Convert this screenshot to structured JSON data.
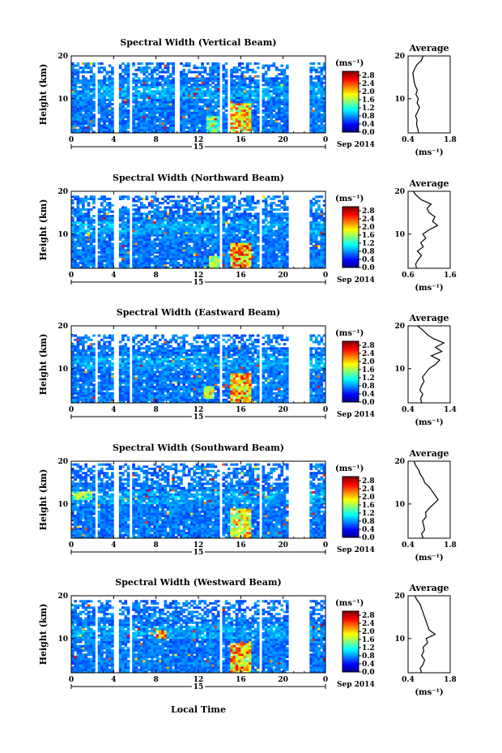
{
  "figure": {
    "x_axis_label": "Local Time",
    "month_year": "Sep 2014",
    "date_marker": "15"
  },
  "chart_data": [
    {
      "type": "heatmap",
      "title": "Spectral Width (Vertical Beam)",
      "xlabel": "",
      "ylabel": "Height (km)",
      "x_ticks": [
        "0",
        "4",
        "8",
        "12",
        "16",
        "20",
        "0"
      ],
      "y_ticks": [
        "20",
        "10"
      ],
      "xlim": [
        0,
        24
      ],
      "ylim": [
        2,
        20
      ],
      "colorbar": {
        "unit": "(ms⁻¹)",
        "ticks": [
          "2.8",
          "2.4",
          "2.0",
          "1.6",
          "1.2",
          "0.8",
          "0.4",
          "0.0"
        ],
        "range": [
          0.0,
          3.0
        ]
      },
      "gaps": [
        [
          2.3,
          2.6
        ],
        [
          4.0,
          4.6
        ],
        [
          5.5,
          5.8
        ],
        [
          9.8,
          10.2
        ],
        [
          14.0,
          14.3
        ],
        [
          14.8,
          15.1
        ],
        [
          17.8,
          18.1
        ],
        [
          20.5,
          22.6
        ]
      ],
      "high_zones": [
        {
          "x": [
            15.0,
            17.0
          ],
          "y": [
            2,
            9
          ],
          "v": 2.4
        },
        {
          "x": [
            12.8,
            14.0
          ],
          "y": [
            2,
            6
          ],
          "v": 1.8
        }
      ],
      "top_km": 18.5,
      "average_profile": {
        "title": "Average",
        "xlabel": "(ms⁻¹)",
        "x_ticks": [
          "0.4",
          "1.8"
        ],
        "xlim": [
          0.4,
          1.8
        ],
        "y_ticks": [
          "20",
          "10"
        ],
        "height_km": [
          2,
          3,
          4,
          5,
          6,
          7,
          8,
          9,
          10,
          11,
          12,
          13,
          14,
          15,
          16,
          17,
          18,
          19,
          20
        ],
        "values": [
          0.75,
          0.72,
          0.68,
          0.7,
          0.65,
          0.72,
          0.78,
          0.7,
          0.74,
          0.66,
          0.71,
          0.64,
          0.6,
          0.58,
          0.56,
          0.62,
          0.7,
          0.85,
          0.9
        ]
      }
    },
    {
      "type": "heatmap",
      "title": "Spectral Width (Northward Beam)",
      "xlabel": "",
      "ylabel": "Height (km)",
      "x_ticks": [
        "0",
        "4",
        "8",
        "12",
        "16",
        "20",
        "0"
      ],
      "y_ticks": [
        "20",
        "10"
      ],
      "xlim": [
        0,
        24
      ],
      "ylim": [
        2,
        20
      ],
      "colorbar": {
        "unit": "(ms⁻¹)",
        "ticks": [
          "2.8",
          "2.4",
          "2.0",
          "1.6",
          "1.2",
          "0.8",
          "0.4",
          "0.0"
        ],
        "range": [
          0.0,
          3.0
        ]
      },
      "gaps": [
        [
          2.3,
          2.6
        ],
        [
          4.0,
          4.6
        ],
        [
          5.5,
          5.8
        ],
        [
          14.0,
          14.3
        ],
        [
          17.8,
          18.1
        ],
        [
          20.5,
          22.6
        ]
      ],
      "high_zones": [
        {
          "x": [
            15.0,
            17.0
          ],
          "y": [
            2,
            8
          ],
          "v": 2.6
        },
        {
          "x": [
            13.0,
            14.0
          ],
          "y": [
            2,
            5
          ],
          "v": 2.0
        }
      ],
      "top_km": 19,
      "average_profile": {
        "title": "Average",
        "xlabel": "(ms⁻¹)",
        "x_ticks": [
          "0.6",
          "1.6"
        ],
        "xlim": [
          0.6,
          1.6
        ],
        "y_ticks": [
          "20",
          "10"
        ],
        "height_km": [
          2,
          3,
          4,
          5,
          6,
          7,
          8,
          9,
          10,
          11,
          12,
          13,
          14,
          15,
          16,
          17,
          18,
          19,
          20
        ],
        "values": [
          0.8,
          0.78,
          0.84,
          0.92,
          0.82,
          0.96,
          0.9,
          1.02,
          0.95,
          1.1,
          1.3,
          1.18,
          1.24,
          1.1,
          1.05,
          1.15,
          0.92,
          0.8,
          0.72
        ]
      }
    },
    {
      "type": "heatmap",
      "title": "Spectral Width (Eastward Beam)",
      "xlabel": "",
      "ylabel": "Height (km)",
      "x_ticks": [
        "0",
        "4",
        "8",
        "12",
        "16",
        "20",
        "0"
      ],
      "y_ticks": [
        "20",
        "10"
      ],
      "xlim": [
        0,
        24
      ],
      "ylim": [
        2,
        20
      ],
      "colorbar": {
        "unit": "(ms⁻¹)",
        "ticks": [
          "2.8",
          "2.4",
          "2.0",
          "1.6",
          "1.2",
          "0.8",
          "0.4",
          "0.0"
        ],
        "range": [
          0.0,
          3.0
        ]
      },
      "gaps": [
        [
          2.3,
          2.6
        ],
        [
          4.0,
          4.6
        ],
        [
          5.5,
          5.8
        ],
        [
          14.0,
          14.3
        ],
        [
          17.8,
          18.1
        ],
        [
          20.5,
          22.6
        ]
      ],
      "high_zones": [
        {
          "x": [
            15.0,
            17.0
          ],
          "y": [
            2,
            9
          ],
          "v": 2.5
        },
        {
          "x": [
            12.5,
            13.5
          ],
          "y": [
            3,
            6
          ],
          "v": 2.0
        }
      ],
      "top_km": 18,
      "average_profile": {
        "title": "Average",
        "xlabel": "(ms⁻¹)",
        "x_ticks": [
          "0.4",
          "1.4"
        ],
        "xlim": [
          0.4,
          1.4
        ],
        "y_ticks": [
          "20",
          "10"
        ],
        "height_km": [
          2,
          3,
          4,
          5,
          6,
          7,
          8,
          9,
          10,
          11,
          12,
          13,
          14,
          15,
          16,
          17,
          18,
          19,
          20
        ],
        "values": [
          0.72,
          0.7,
          0.75,
          0.68,
          0.72,
          0.78,
          0.74,
          0.82,
          0.9,
          1.05,
          1.15,
          0.95,
          1.2,
          1.05,
          1.25,
          1.0,
          0.85,
          0.75,
          0.62
        ]
      }
    },
    {
      "type": "heatmap",
      "title": "Spectral Width (Southward Beam)",
      "xlabel": "",
      "ylabel": "Height (km)",
      "x_ticks": [
        "0",
        "4",
        "8",
        "12",
        "16",
        "20",
        "0"
      ],
      "y_ticks": [
        "20",
        "10"
      ],
      "xlim": [
        0,
        24
      ],
      "ylim": [
        2,
        20
      ],
      "colorbar": {
        "unit": "(ms⁻¹)",
        "ticks": [
          "2.8",
          "2.4",
          "2.0",
          "1.6",
          "1.2",
          "0.8",
          "0.4",
          "0.0"
        ],
        "range": [
          0.0,
          3.0
        ]
      },
      "gaps": [
        [
          2.3,
          2.6
        ],
        [
          4.0,
          4.6
        ],
        [
          5.5,
          5.8
        ],
        [
          14.0,
          14.3
        ],
        [
          17.8,
          18.1
        ],
        [
          20.5,
          22.6
        ]
      ],
      "high_zones": [
        {
          "x": [
            15.0,
            17.0
          ],
          "y": [
            2,
            9
          ],
          "v": 2.3
        },
        {
          "x": [
            0.0,
            2.0
          ],
          "y": [
            11,
            13
          ],
          "v": 1.8
        }
      ],
      "top_km": 19.5,
      "average_profile": {
        "title": "Average",
        "xlabel": "(ms⁻¹)",
        "x_ticks": [
          "0.4",
          "1.8"
        ],
        "xlim": [
          0.4,
          1.8
        ],
        "y_ticks": [
          "20",
          "10"
        ],
        "height_km": [
          2,
          3,
          4,
          5,
          6,
          7,
          8,
          9,
          10,
          11,
          12,
          13,
          14,
          15,
          16,
          17,
          18,
          19,
          20
        ],
        "values": [
          0.9,
          0.85,
          0.95,
          0.92,
          0.88,
          1.0,
          0.98,
          1.1,
          1.25,
          1.4,
          1.3,
          1.2,
          1.1,
          0.95,
          0.9,
          0.8,
          0.75,
          0.65,
          0.6
        ]
      }
    },
    {
      "type": "heatmap",
      "title": "Spectral Width (Westward Beam)",
      "xlabel": "",
      "ylabel": "Height (km)",
      "x_ticks": [
        "0",
        "4",
        "8",
        "12",
        "16",
        "20",
        "0"
      ],
      "y_ticks": [
        "20",
        "10"
      ],
      "xlim": [
        0,
        24
      ],
      "ylim": [
        2,
        20
      ],
      "colorbar": {
        "unit": "(ms⁻¹)",
        "ticks": [
          "2.8",
          "2.4",
          "2.0",
          "1.6",
          "1.2",
          "0.8",
          "0.4",
          "0.0"
        ],
        "range": [
          0.0,
          3.0
        ]
      },
      "gaps": [
        [
          2.3,
          2.6
        ],
        [
          4.0,
          4.6
        ],
        [
          5.5,
          5.8
        ],
        [
          14.0,
          14.3
        ],
        [
          17.8,
          18.1
        ],
        [
          20.5,
          22.6
        ]
      ],
      "high_zones": [
        {
          "x": [
            15.0,
            17.0
          ],
          "y": [
            2,
            9
          ],
          "v": 2.5
        },
        {
          "x": [
            8.0,
            9.0
          ],
          "y": [
            10,
            12
          ],
          "v": 2.6
        }
      ],
      "top_km": 19,
      "average_profile": {
        "title": "Average",
        "xlabel": "(ms⁻¹)",
        "x_ticks": [
          "0.4",
          "1.8"
        ],
        "xlim": [
          0.4,
          1.8
        ],
        "y_ticks": [
          "20",
          "10"
        ],
        "height_km": [
          2,
          3,
          4,
          5,
          6,
          7,
          8,
          9,
          10,
          11,
          12,
          13,
          14,
          15,
          16,
          17,
          18,
          19,
          20
        ],
        "values": [
          0.85,
          0.8,
          0.9,
          0.95,
          0.85,
          0.92,
          0.9,
          1.05,
          1.0,
          1.3,
          1.1,
          1.05,
          1.0,
          0.95,
          0.9,
          0.85,
          0.8,
          0.7,
          0.62
        ]
      }
    }
  ]
}
